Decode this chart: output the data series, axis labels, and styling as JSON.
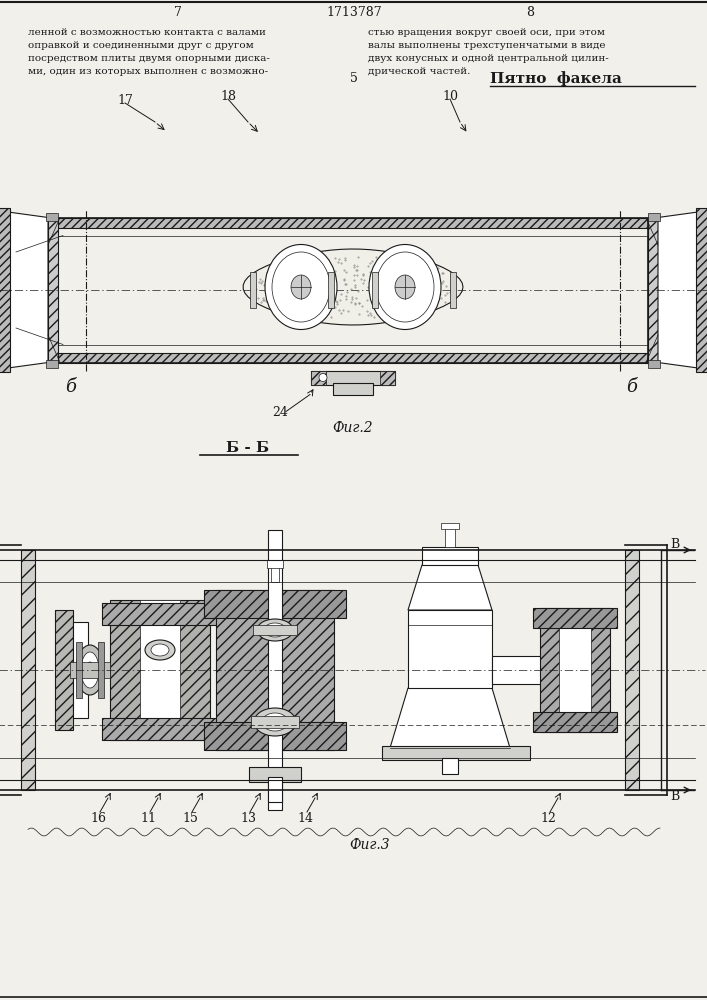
{
  "page_num_left": "7",
  "page_num_center": "1713787",
  "page_num_right": "8",
  "text_left_lines": [
    "ленной с возможностью контакта с валами",
    "оправкой и соединенными друг с другом",
    "посредством плиты двумя опорными диска-",
    "ми, один из которых выполнен с возможно-"
  ],
  "text_right_lines": [
    "стью вращения вокруг своей оси, при этом",
    "валы выполнены трехступенчатыми в виде",
    "двух конусных и одной центральной цилин-",
    "дрической частей."
  ],
  "annotation": "Пятно  факела",
  "fig2_caption": "Фиг.2",
  "fig3_caption": "Фиг.3",
  "section_bb": "Б - Б",
  "bg_color": "#f2f0eb",
  "lc": "#1a1a1a"
}
